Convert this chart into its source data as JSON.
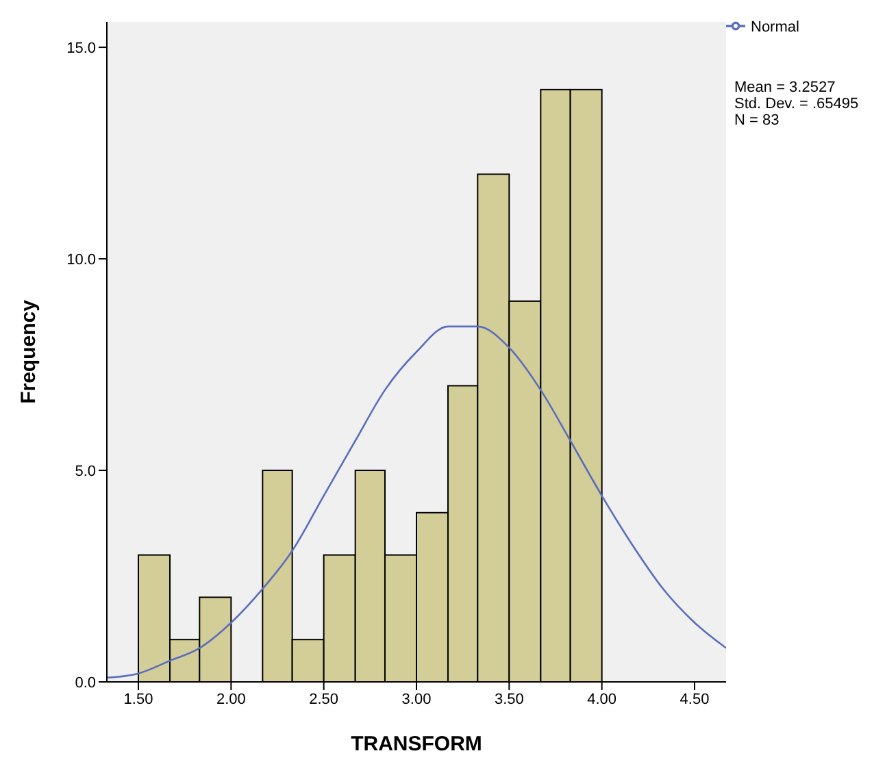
{
  "chart_data": {
    "type": "histogram",
    "xlabel": "TRANSFORM",
    "ylabel": "Frequency",
    "bins": [
      1.5,
      1.67,
      1.83,
      2,
      2.17,
      2.33,
      2.5,
      2.67,
      2.83,
      3,
      3.17,
      3.33,
      3.5,
      3.67,
      3.83,
      4
    ],
    "values": [
      3,
      1,
      2,
      0,
      5,
      1,
      3,
      5,
      3,
      4,
      7,
      12,
      9,
      14,
      14
    ],
    "color": "#d3ce97",
    "series": [
      {
        "type": "line",
        "name": "Normal",
        "color": "#5a6ebd",
        "x": [
          1.33,
          1.5,
          1.67,
          1.83,
          2,
          2.17,
          2.33,
          2.5,
          2.67,
          2.83,
          3,
          3.17,
          3.25,
          3.33,
          3.5,
          3.67,
          3.83,
          4,
          4.17,
          4.33,
          4.5,
          4.67
        ],
        "values": [
          0.1,
          0.2,
          0.5,
          0.8,
          1.4,
          2.2,
          3.1,
          4.4,
          5.7,
          6.9,
          7.8,
          8.4,
          8.4,
          8.4,
          7.9,
          6.9,
          5.7,
          4.4,
          3.2,
          2.2,
          1.4,
          0.8
        ]
      }
    ],
    "xlim": [
      1.33,
      4.67
    ],
    "xticks": [
      {
        "value": 1.5,
        "label": "1.50"
      },
      {
        "value": 2,
        "label": "2.00"
      },
      {
        "value": 2.5,
        "label": "2.50"
      },
      {
        "value": 3,
        "label": "3.00"
      },
      {
        "value": 3.5,
        "label": "3.50"
      },
      {
        "value": 4,
        "label": "4.00"
      },
      {
        "value": 4.5,
        "label": "4.50"
      }
    ],
    "ylim": [
      0,
      15.6
    ],
    "yticks": [
      {
        "value": 0,
        "label": "0.0"
      },
      {
        "value": 5,
        "label": "5.0"
      },
      {
        "value": 10,
        "label": "10.0"
      },
      {
        "value": 15,
        "label": "15.0"
      }
    ],
    "legend": "top right",
    "annotations": [
      "Mean = 3.2527",
      "Std. Dev. = .65495",
      "N = 83"
    ]
  }
}
